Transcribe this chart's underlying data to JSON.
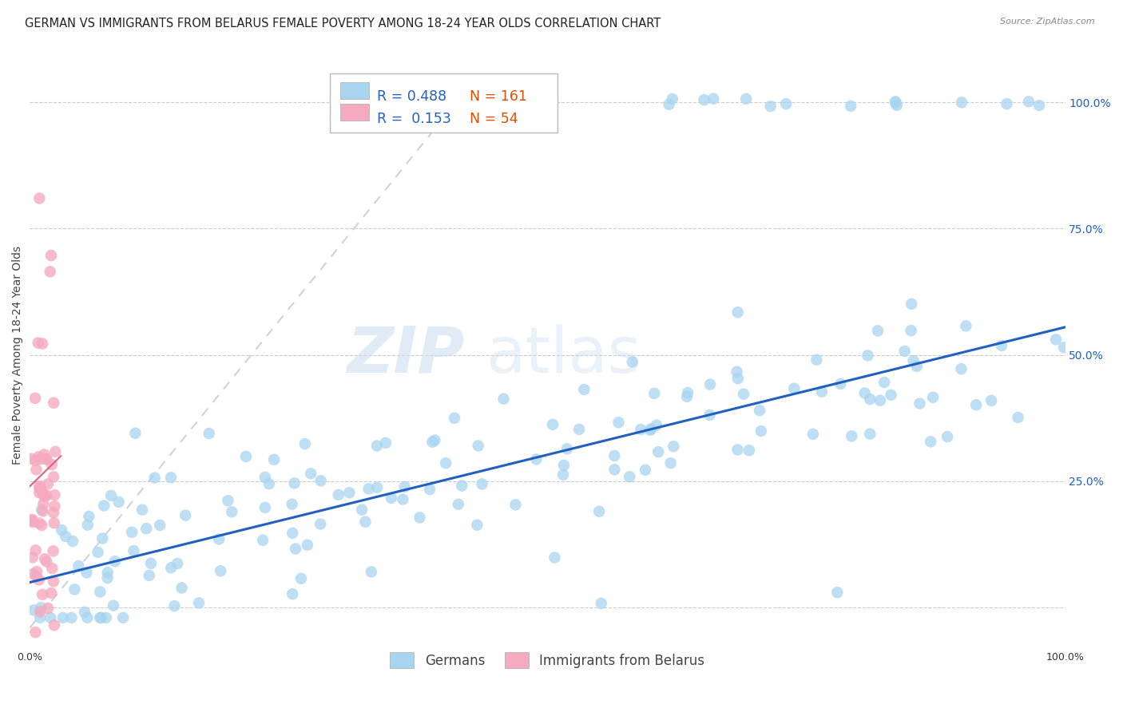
{
  "title": "GERMAN VS IMMIGRANTS FROM BELARUS FEMALE POVERTY AMONG 18-24 YEAR OLDS CORRELATION CHART",
  "source": "Source: ZipAtlas.com",
  "ylabel": "Female Poverty Among 18-24 Year Olds",
  "r_german": 0.488,
  "n_german": 161,
  "r_belarus": 0.153,
  "n_belarus": 54,
  "watermark_zip": "ZIP",
  "watermark_atlas": "atlas",
  "xlim": [
    0.0,
    1.0
  ],
  "ylim": [
    -0.08,
    1.08
  ],
  "yticks": [
    0.0,
    0.25,
    0.5,
    0.75,
    1.0
  ],
  "ytick_labels_right": [
    "",
    "25.0%",
    "50.0%",
    "75.0%",
    "100.0%"
  ],
  "color_german": "#A8D4F0",
  "color_belarus": "#F5AABF",
  "line_color_german": "#2060C0",
  "dashed_line_color": "#D0D0D0",
  "background_color": "#FFFFFF",
  "legend_color": "#2060C0",
  "n_color": "#E05000",
  "title_color": "#222222",
  "title_fontsize": 10.5,
  "axis_fontsize": 9,
  "legend_fontsize": 12.5,
  "right_tick_color": "#2060C0",
  "seed": 7
}
